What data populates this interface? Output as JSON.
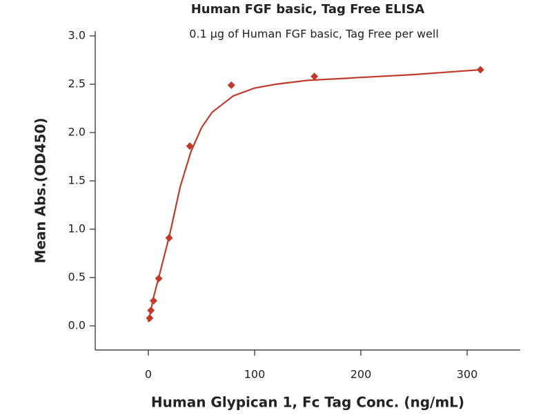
{
  "chart_data": {
    "type": "scatter",
    "title": "Human FGF basic, Tag Free ELISA",
    "subtitle": "0.1 μg of Human FGF basic, Tag Free per well",
    "x_label": "Human Glypican 1, Fc Tag Conc. (ng/mL)",
    "y_label": "Mean Abs.(OD450)",
    "xlim": [
      -50,
      350
    ],
    "xticks": [
      0,
      100,
      200,
      300
    ],
    "ylim": [
      -0.25,
      3.0
    ],
    "yticks": [
      {
        "value": 0,
        "label": "0.0"
      },
      0.5,
      {
        "value": 1,
        "label": "1.0"
      },
      1.5,
      {
        "value": 2,
        "label": "2.0"
      },
      2.5,
      {
        "value": 3,
        "label": "3.0"
      }
    ],
    "grid": false,
    "series": [
      {
        "mode": "markers",
        "color": "#c0392b",
        "x": [
          1.22,
          2.44,
          4.88,
          9.77,
          19.53,
          39.06,
          78.13,
          156.25,
          312.5
        ],
        "values": [
          0.08,
          0.16,
          0.26,
          0.49,
          0.91,
          1.86,
          2.49,
          2.58,
          2.65
        ]
      },
      {
        "mode": "line",
        "color": "#c0392b",
        "x": [
          0,
          5,
          10,
          20,
          30,
          40,
          50,
          60,
          80,
          100,
          120,
          150,
          200,
          250,
          312.5
        ],
        "values": [
          0.04,
          0.3,
          0.51,
          0.94,
          1.44,
          1.8,
          2.05,
          2.21,
          2.38,
          2.46,
          2.5,
          2.54,
          2.57,
          2.6,
          2.65
        ]
      }
    ]
  }
}
